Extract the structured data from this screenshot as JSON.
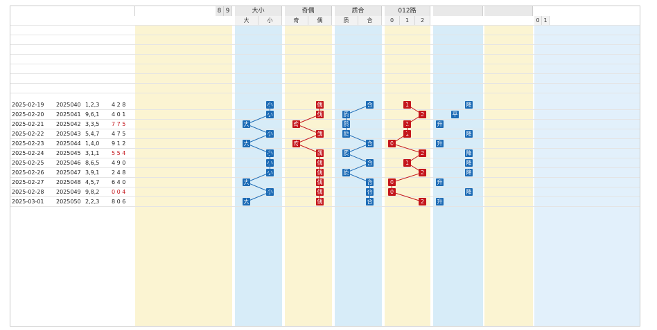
{
  "headers": {
    "digits_tail": [
      "8",
      "9"
    ],
    "big_small": "大小",
    "odd_even": "奇偶",
    "prime_composite": "质合",
    "road012": "012路",
    "sub_big": "大",
    "sub_small": "小",
    "sub_odd": "奇",
    "sub_even": "偶",
    "sub_prime": "质",
    "sub_comp": "合",
    "sub_0": "0",
    "sub_1": "1",
    "sub_2": "2",
    "zero_one": [
      "0",
      "1"
    ]
  },
  "rows": [
    {
      "date": "2025-02-19",
      "issue": "2025040",
      "nums": "1,2,3",
      "result": "4 2 8",
      "bs": "小",
      "oe": "偶",
      "pc": "合",
      "road": "1",
      "trend": "降"
    },
    {
      "date": "2025-02-20",
      "issue": "2025041",
      "nums": "9,6,1",
      "result": "4 0 1",
      "bs": "小",
      "oe": "偶",
      "pc": "质",
      "road": "2",
      "trend": "平"
    },
    {
      "date": "2025-02-21",
      "issue": "2025042",
      "nums": "3,3,5",
      "result": "7 7 5",
      "bs": "大",
      "oe": "奇",
      "pc": "质",
      "road": "1",
      "trend": "升"
    },
    {
      "date": "2025-02-22",
      "issue": "2025043",
      "nums": "5,4,7",
      "result": "4 7 5",
      "bs": "小",
      "oe": "偶",
      "pc": "质",
      "road": "1",
      "trend": "降"
    },
    {
      "date": "2025-02-23",
      "issue": "2025044",
      "nums": "1,4,0",
      "result": "9 1 2",
      "bs": "大",
      "oe": "奇",
      "pc": "合",
      "road": "0",
      "trend": "升"
    },
    {
      "date": "2025-02-24",
      "issue": "2025045",
      "nums": "3,1,1",
      "result": "5 5 4",
      "bs": "小",
      "oe": "偶",
      "pc": "质",
      "road": "2",
      "trend": "降"
    },
    {
      "date": "2025-02-25",
      "issue": "2025046",
      "nums": "8,6,5",
      "result": "4 9 0",
      "bs": "小",
      "oe": "偶",
      "pc": "合",
      "road": "1",
      "trend": "降"
    },
    {
      "date": "2025-02-26",
      "issue": "2025047",
      "nums": "3,9,1",
      "result": "2 4 8",
      "bs": "小",
      "oe": "偶",
      "pc": "质",
      "road": "2",
      "trend": "降"
    },
    {
      "date": "2025-02-27",
      "issue": "2025048",
      "nums": "4,5,7",
      "result": "6 4 0",
      "bs": "大",
      "oe": "偶",
      "pc": "合",
      "road": "0",
      "trend": "升"
    },
    {
      "date": "2025-02-28",
      "issue": "2025049",
      "nums": "9,8,2",
      "result": "0 0 4",
      "bs": "小",
      "oe": "偶",
      "pc": "合",
      "road": "0",
      "trend": "降"
    },
    {
      "date": "2025-03-01",
      "issue": "2025050",
      "nums": "2,2,3",
      "result": "8 0 6",
      "bs": "大",
      "oe": "偶",
      "pc": "合",
      "road": "2",
      "trend": "升"
    }
  ],
  "colors": {
    "blue": "#1d6bb5",
    "red": "#c4161c",
    "green": "#3b8a2a",
    "yellow_band": "#fbf4d2",
    "cyan_band": "#d7ecf8",
    "header": "#e9e9e9"
  }
}
